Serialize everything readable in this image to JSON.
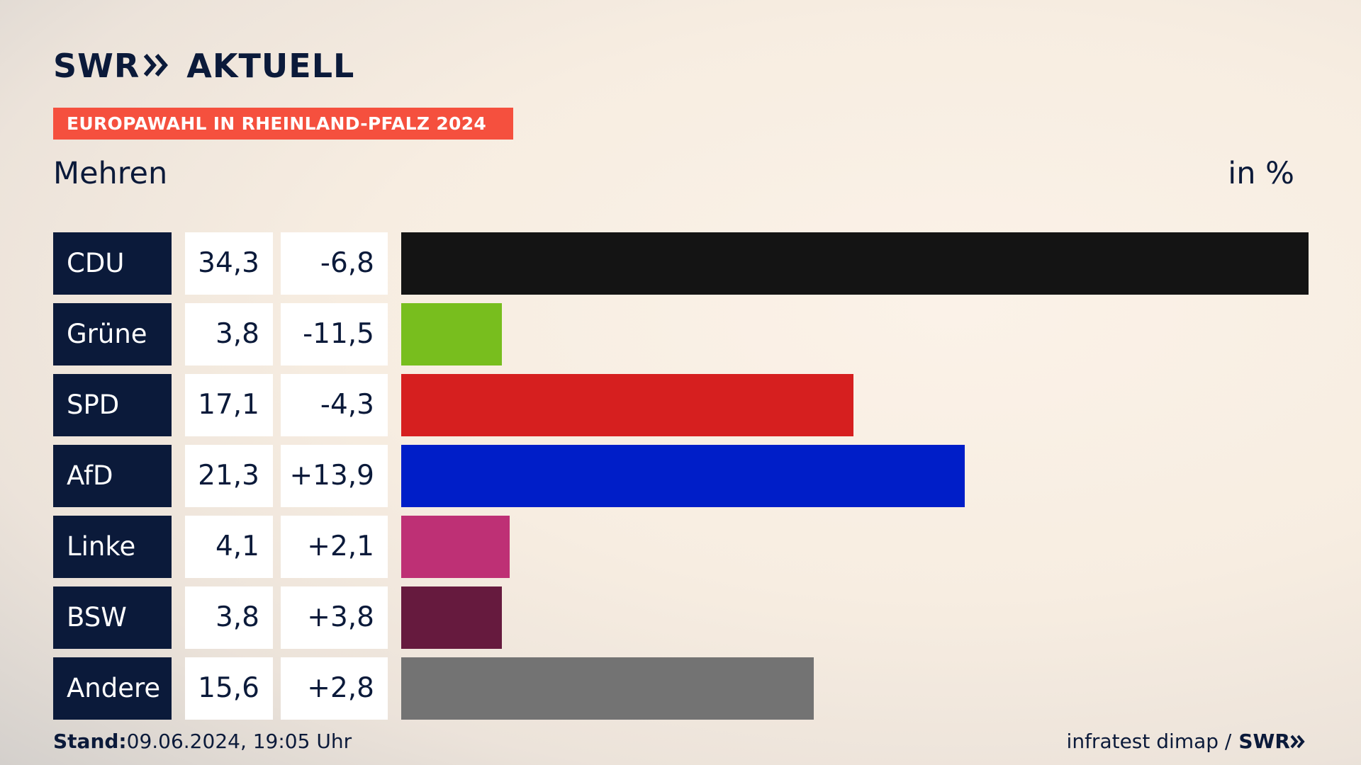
{
  "header": {
    "logo_text_left": "SWR",
    "logo_text_right": "AKTUELL",
    "banner": "EUROPAWAHL IN RHEINLAND-PFALZ 2024",
    "place": "Mehren",
    "unit": "in %"
  },
  "footer": {
    "stand_label": "Stand:",
    "stand_value": "09.06.2024, 19:05 Uhr",
    "source": "infratest dimap /",
    "source_brand": "SWR"
  },
  "colors": {
    "navy": "#0b1a3a",
    "banner": "#f5503e"
  },
  "chart_data": {
    "type": "bar",
    "orientation": "horizontal",
    "categories": [
      "CDU",
      "Grüne",
      "SPD",
      "AfD",
      "Linke",
      "BSW",
      "Andere"
    ],
    "values": [
      34.3,
      3.8,
      17.1,
      21.3,
      4.1,
      3.8,
      15.6
    ],
    "value_labels": [
      "34,3",
      "3,8",
      "17,1",
      "21,3",
      "4,1",
      "3,8",
      "15,6"
    ],
    "diffs": [
      -6.8,
      -11.5,
      -4.3,
      13.9,
      2.1,
      3.8,
      2.8
    ],
    "diff_labels": [
      "-6,8",
      "-11,5",
      "-4,3",
      "+13,9",
      "+2,1",
      "+3,8",
      "+2,8"
    ],
    "bar_colors": [
      "#141414",
      "#78be1e",
      "#d61f1f",
      "#001ec8",
      "#be3075",
      "#661a3e",
      "#737373"
    ],
    "xlim": [
      0,
      34.3
    ]
  }
}
